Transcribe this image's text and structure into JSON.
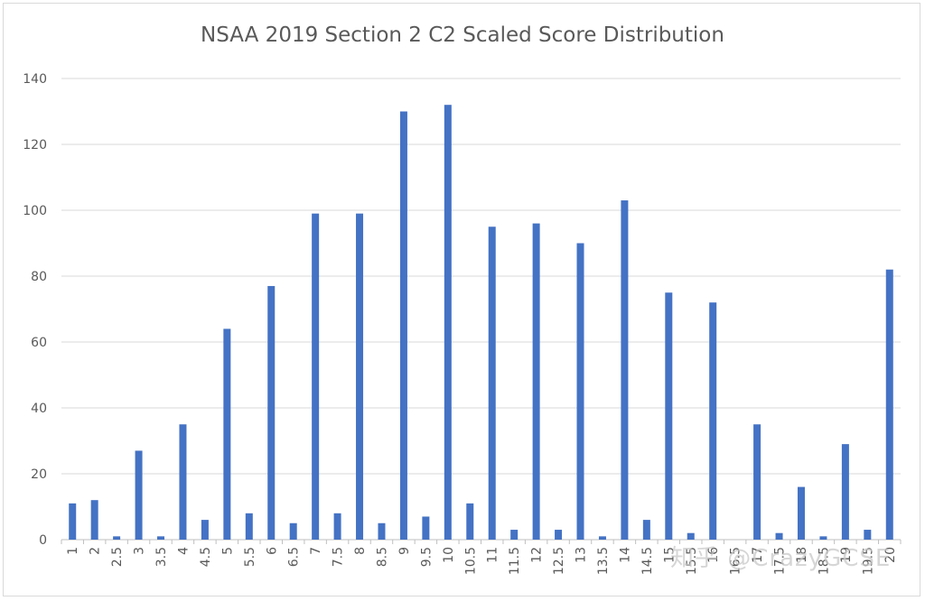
{
  "chart_data": {
    "type": "bar",
    "title": "NSAA 2019 Section 2 C2 Scaled Score Distribution",
    "xlabel": "",
    "ylabel": "",
    "ylim": [
      0,
      140
    ],
    "yticks": [
      0,
      20,
      40,
      60,
      80,
      100,
      120,
      140
    ],
    "grid": true,
    "legend": "none",
    "bar_color": "#4472c4",
    "grid_color": "#d9d9d9",
    "label_color": "#595959",
    "categories": [
      "1",
      "2",
      "2.5",
      "3",
      "3.5",
      "4",
      "4.5",
      "5",
      "5.5",
      "6",
      "6.5",
      "7",
      "7.5",
      "8",
      "8.5",
      "9",
      "9.5",
      "10",
      "10.5",
      "11",
      "11.5",
      "12",
      "12.5",
      "13",
      "13.5",
      "14",
      "14.5",
      "15",
      "15.5",
      "16",
      "16.5",
      "17",
      "17.5",
      "18",
      "18.5",
      "19",
      "19.5",
      "20"
    ],
    "values": [
      11,
      12,
      1,
      27,
      1,
      35,
      6,
      64,
      8,
      77,
      5,
      99,
      8,
      99,
      5,
      130,
      7,
      132,
      11,
      95,
      3,
      96,
      3,
      90,
      1,
      103,
      6,
      75,
      2,
      72,
      0,
      35,
      2,
      16,
      1,
      29,
      3,
      82
    ]
  },
  "watermark": "知乎 @CrazyGCSE"
}
